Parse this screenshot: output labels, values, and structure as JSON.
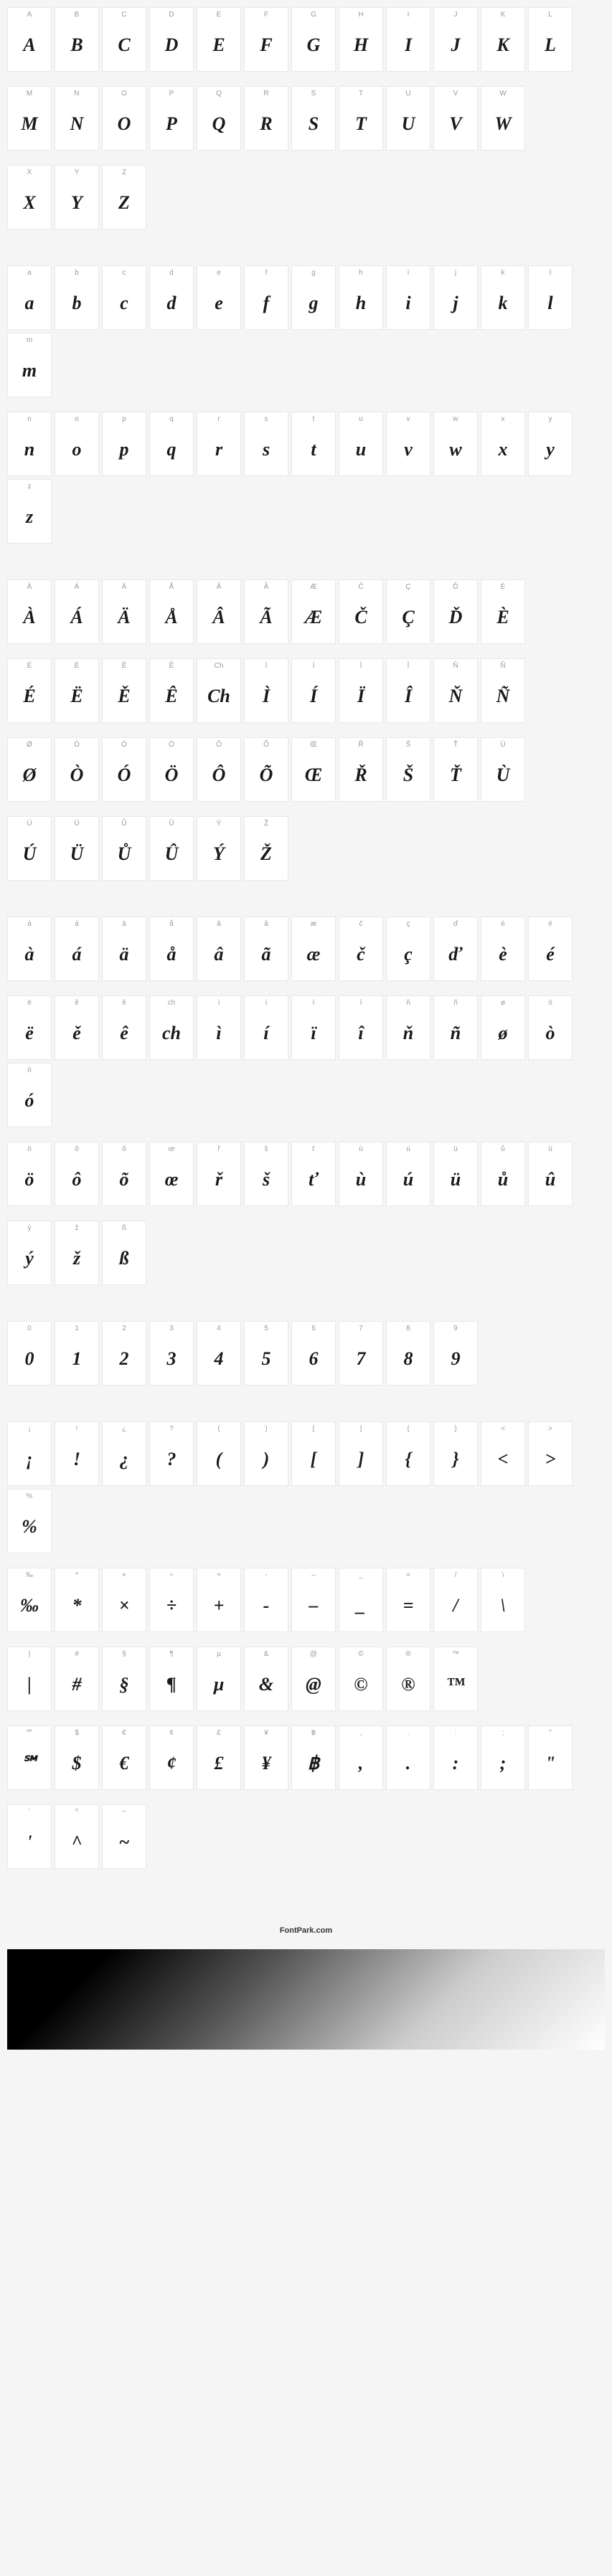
{
  "footer_text": "FontPark.com",
  "cell_bg": "#ffffff",
  "cell_border": "#e8e8e8",
  "label_color": "#999999",
  "glyph_color": "#1a1a1a",
  "page_bg": "#f5f5f5",
  "sections": [
    {
      "rows": [
        [
          {
            "label": "A",
            "glyph": "A"
          },
          {
            "label": "B",
            "glyph": "B"
          },
          {
            "label": "C",
            "glyph": "C"
          },
          {
            "label": "D",
            "glyph": "D"
          },
          {
            "label": "E",
            "glyph": "E"
          },
          {
            "label": "F",
            "glyph": "F"
          },
          {
            "label": "G",
            "glyph": "G"
          },
          {
            "label": "H",
            "glyph": "H"
          },
          {
            "label": "I",
            "glyph": "I"
          },
          {
            "label": "J",
            "glyph": "J"
          },
          {
            "label": "K",
            "glyph": "K"
          },
          {
            "label": "L",
            "glyph": "L"
          }
        ],
        [
          {
            "label": "M",
            "glyph": "M"
          },
          {
            "label": "N",
            "glyph": "N"
          },
          {
            "label": "O",
            "glyph": "O"
          },
          {
            "label": "P",
            "glyph": "P"
          },
          {
            "label": "Q",
            "glyph": "Q"
          },
          {
            "label": "R",
            "glyph": "R"
          },
          {
            "label": "S",
            "glyph": "S"
          },
          {
            "label": "T",
            "glyph": "T"
          },
          {
            "label": "U",
            "glyph": "U"
          },
          {
            "label": "V",
            "glyph": "V"
          },
          {
            "label": "W",
            "glyph": "W"
          }
        ],
        [
          {
            "label": "X",
            "glyph": "X"
          },
          {
            "label": "Y",
            "glyph": "Y"
          },
          {
            "label": "Z",
            "glyph": "Z"
          }
        ]
      ]
    },
    {
      "rows": [
        [
          {
            "label": "a",
            "glyph": "a"
          },
          {
            "label": "b",
            "glyph": "b"
          },
          {
            "label": "c",
            "glyph": "c"
          },
          {
            "label": "d",
            "glyph": "d"
          },
          {
            "label": "e",
            "glyph": "e"
          },
          {
            "label": "f",
            "glyph": "f"
          },
          {
            "label": "g",
            "glyph": "g"
          },
          {
            "label": "h",
            "glyph": "h"
          },
          {
            "label": "i",
            "glyph": "i"
          },
          {
            "label": "j",
            "glyph": "j"
          },
          {
            "label": "k",
            "glyph": "k"
          },
          {
            "label": "l",
            "glyph": "l"
          },
          {
            "label": "m",
            "glyph": "m"
          }
        ],
        [
          {
            "label": "n",
            "glyph": "n"
          },
          {
            "label": "o",
            "glyph": "o"
          },
          {
            "label": "p",
            "glyph": "p"
          },
          {
            "label": "q",
            "glyph": "q"
          },
          {
            "label": "r",
            "glyph": "r"
          },
          {
            "label": "s",
            "glyph": "s"
          },
          {
            "label": "t",
            "glyph": "t"
          },
          {
            "label": "u",
            "glyph": "u"
          },
          {
            "label": "v",
            "glyph": "v"
          },
          {
            "label": "w",
            "glyph": "w"
          },
          {
            "label": "x",
            "glyph": "x"
          },
          {
            "label": "y",
            "glyph": "y"
          },
          {
            "label": "z",
            "glyph": "z"
          }
        ]
      ]
    },
    {
      "rows": [
        [
          {
            "label": "À",
            "glyph": "À"
          },
          {
            "label": "Á",
            "glyph": "Á"
          },
          {
            "label": "Ä",
            "glyph": "Ä"
          },
          {
            "label": "Å",
            "glyph": "Å"
          },
          {
            "label": "Â",
            "glyph": "Â"
          },
          {
            "label": "Ã",
            "glyph": "Ã"
          },
          {
            "label": "Æ",
            "glyph": "Æ"
          },
          {
            "label": "Č",
            "glyph": "Č"
          },
          {
            "label": "Ç",
            "glyph": "Ç"
          },
          {
            "label": "Ď",
            "glyph": "Ď"
          },
          {
            "label": "È",
            "glyph": "È"
          }
        ],
        [
          {
            "label": "É",
            "glyph": "É"
          },
          {
            "label": "Ë",
            "glyph": "Ë"
          },
          {
            "label": "Ě",
            "glyph": "Ě"
          },
          {
            "label": "Ê",
            "glyph": "Ê"
          },
          {
            "label": "Ch",
            "glyph": "Ch"
          },
          {
            "label": "Ì",
            "glyph": "Ì"
          },
          {
            "label": "Í",
            "glyph": "Í"
          },
          {
            "label": "Ï",
            "glyph": "Ï"
          },
          {
            "label": "Î",
            "glyph": "Î"
          },
          {
            "label": "Ň",
            "glyph": "Ň"
          },
          {
            "label": "Ñ",
            "glyph": "Ñ"
          }
        ],
        [
          {
            "label": "Ø",
            "glyph": "Ø"
          },
          {
            "label": "Ò",
            "glyph": "Ò"
          },
          {
            "label": "Ó",
            "glyph": "Ó"
          },
          {
            "label": "Ö",
            "glyph": "Ö"
          },
          {
            "label": "Ô",
            "glyph": "Ô"
          },
          {
            "label": "Õ",
            "glyph": "Õ"
          },
          {
            "label": "Œ",
            "glyph": "Œ"
          },
          {
            "label": "Ř",
            "glyph": "Ř"
          },
          {
            "label": "Š",
            "glyph": "Š"
          },
          {
            "label": "Ť",
            "glyph": "Ť"
          },
          {
            "label": "Ù",
            "glyph": "Ù"
          }
        ],
        [
          {
            "label": "Ú",
            "glyph": "Ú"
          },
          {
            "label": "Ü",
            "glyph": "Ü"
          },
          {
            "label": "Ů",
            "glyph": "Ů"
          },
          {
            "label": "Û",
            "glyph": "Û"
          },
          {
            "label": "Ý",
            "glyph": "Ý"
          },
          {
            "label": "Ž",
            "glyph": "Ž"
          }
        ]
      ]
    },
    {
      "rows": [
        [
          {
            "label": "à",
            "glyph": "à"
          },
          {
            "label": "á",
            "glyph": "á"
          },
          {
            "label": "ä",
            "glyph": "ä"
          },
          {
            "label": "å",
            "glyph": "å"
          },
          {
            "label": "â",
            "glyph": "â"
          },
          {
            "label": "ã",
            "glyph": "ã"
          },
          {
            "label": "æ",
            "glyph": "æ"
          },
          {
            "label": "č",
            "glyph": "č"
          },
          {
            "label": "ç",
            "glyph": "ç"
          },
          {
            "label": "ď",
            "glyph": "ď"
          },
          {
            "label": "è",
            "glyph": "è"
          },
          {
            "label": "é",
            "glyph": "é"
          }
        ],
        [
          {
            "label": "ë",
            "glyph": "ë"
          },
          {
            "label": "ě",
            "glyph": "ě"
          },
          {
            "label": "ê",
            "glyph": "ê"
          },
          {
            "label": "ch",
            "glyph": "ch"
          },
          {
            "label": "ì",
            "glyph": "ì"
          },
          {
            "label": "í",
            "glyph": "í"
          },
          {
            "label": "ï",
            "glyph": "ï"
          },
          {
            "label": "î",
            "glyph": "î"
          },
          {
            "label": "ň",
            "glyph": "ň"
          },
          {
            "label": "ñ",
            "glyph": "ñ"
          },
          {
            "label": "ø",
            "glyph": "ø"
          },
          {
            "label": "ò",
            "glyph": "ò"
          },
          {
            "label": "ó",
            "glyph": "ó"
          }
        ],
        [
          {
            "label": "ö",
            "glyph": "ö"
          },
          {
            "label": "ô",
            "glyph": "ô"
          },
          {
            "label": "õ",
            "glyph": "õ"
          },
          {
            "label": "œ",
            "glyph": "œ"
          },
          {
            "label": "ř",
            "glyph": "ř"
          },
          {
            "label": "š",
            "glyph": "š"
          },
          {
            "label": "ť",
            "glyph": "ť"
          },
          {
            "label": "ù",
            "glyph": "ù"
          },
          {
            "label": "ú",
            "glyph": "ú"
          },
          {
            "label": "ü",
            "glyph": "ü"
          },
          {
            "label": "ů",
            "glyph": "ů"
          },
          {
            "label": "û",
            "glyph": "û"
          }
        ],
        [
          {
            "label": "ý",
            "glyph": "ý"
          },
          {
            "label": "ž",
            "glyph": "ž"
          },
          {
            "label": "ß",
            "glyph": "ß"
          }
        ]
      ]
    },
    {
      "rows": [
        [
          {
            "label": "0",
            "glyph": "0"
          },
          {
            "label": "1",
            "glyph": "1"
          },
          {
            "label": "2",
            "glyph": "2"
          },
          {
            "label": "3",
            "glyph": "3"
          },
          {
            "label": "4",
            "glyph": "4"
          },
          {
            "label": "5",
            "glyph": "5"
          },
          {
            "label": "6",
            "glyph": "6"
          },
          {
            "label": "7",
            "glyph": "7"
          },
          {
            "label": "8",
            "glyph": "8"
          },
          {
            "label": "9",
            "glyph": "9"
          }
        ]
      ]
    },
    {
      "rows": [
        [
          {
            "label": "¡",
            "glyph": "¡"
          },
          {
            "label": "!",
            "glyph": "!"
          },
          {
            "label": "¿",
            "glyph": "¿"
          },
          {
            "label": "?",
            "glyph": "?"
          },
          {
            "label": "(",
            "glyph": "("
          },
          {
            "label": ")",
            "glyph": ")"
          },
          {
            "label": "[",
            "glyph": "["
          },
          {
            "label": "]",
            "glyph": "]"
          },
          {
            "label": "{",
            "glyph": "{"
          },
          {
            "label": "}",
            "glyph": "}"
          },
          {
            "label": "<",
            "glyph": "<"
          },
          {
            "label": ">",
            "glyph": ">"
          },
          {
            "label": "%",
            "glyph": "%"
          }
        ],
        [
          {
            "label": "‰",
            "glyph": "‰"
          },
          {
            "label": "*",
            "glyph": "*"
          },
          {
            "label": "×",
            "glyph": "×"
          },
          {
            "label": "÷",
            "glyph": "÷"
          },
          {
            "label": "+",
            "glyph": "+"
          },
          {
            "label": "-",
            "glyph": "-"
          },
          {
            "label": "–",
            "glyph": "–"
          },
          {
            "label": "_",
            "glyph": "_"
          },
          {
            "label": "=",
            "glyph": "="
          },
          {
            "label": "/",
            "glyph": "/"
          },
          {
            "label": "\\",
            "glyph": "\\"
          }
        ],
        [
          {
            "label": "|",
            "glyph": "|"
          },
          {
            "label": "#",
            "glyph": "#"
          },
          {
            "label": "§",
            "glyph": "§"
          },
          {
            "label": "¶",
            "glyph": "¶"
          },
          {
            "label": "µ",
            "glyph": "µ"
          },
          {
            "label": "&",
            "glyph": "&"
          },
          {
            "label": "@",
            "glyph": "@"
          },
          {
            "label": "©",
            "glyph": "©"
          },
          {
            "label": "®",
            "glyph": "®"
          },
          {
            "label": "™",
            "glyph": "™"
          }
        ],
        [
          {
            "label": "℠",
            "glyph": "℠"
          },
          {
            "label": "$",
            "glyph": "$"
          },
          {
            "label": "€",
            "glyph": "€"
          },
          {
            "label": "¢",
            "glyph": "¢"
          },
          {
            "label": "£",
            "glyph": "£"
          },
          {
            "label": "¥",
            "glyph": "¥"
          },
          {
            "label": "฿",
            "glyph": "฿"
          },
          {
            "label": ",",
            "glyph": ","
          },
          {
            "label": ".",
            "glyph": "."
          },
          {
            "label": ":",
            "glyph": ":"
          },
          {
            "label": ";",
            "glyph": ";"
          },
          {
            "label": "\"",
            "glyph": "\""
          }
        ],
        [
          {
            "label": "'",
            "glyph": "'"
          },
          {
            "label": "^",
            "glyph": "^"
          },
          {
            "label": "~",
            "glyph": "~"
          }
        ]
      ]
    }
  ]
}
